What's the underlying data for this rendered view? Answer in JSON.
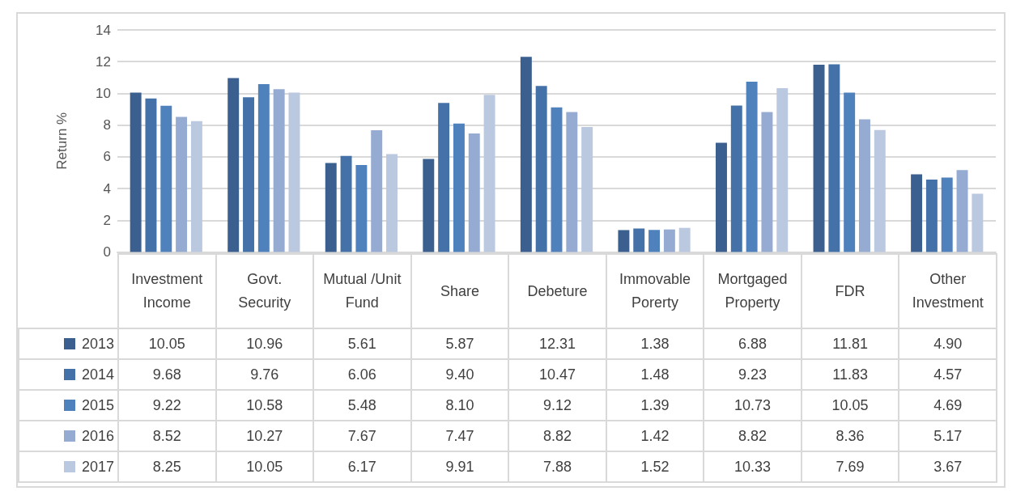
{
  "chart_data": {
    "type": "bar",
    "ylabel": "Return %",
    "categories": [
      "Investment Income",
      "Govt. Security",
      "Mutual /Unit Fund",
      "Share",
      "Debeture",
      "Immovable Porerty",
      "Mortgaged Property",
      "FDR",
      "Other Investment"
    ],
    "series": [
      {
        "name": "2013",
        "color": "#3b5f8f",
        "values": [
          10.05,
          10.96,
          5.61,
          5.87,
          12.31,
          1.38,
          6.88,
          11.81,
          4.9
        ],
        "value_labels": [
          "10.05",
          "10.96",
          "5.61",
          "5.87",
          "12.31",
          "1.38",
          "6.88",
          "11.81",
          "4.90"
        ]
      },
      {
        "name": "2014",
        "color": "#4472a8",
        "values": [
          9.68,
          9.76,
          6.06,
          9.4,
          10.47,
          1.48,
          9.23,
          11.83,
          4.57
        ],
        "value_labels": [
          "9.68",
          "9.76",
          "6.06",
          "9.40",
          "10.47",
          "1.48",
          "9.23",
          "11.83",
          "4.57"
        ]
      },
      {
        "name": "2015",
        "color": "#4f81bd",
        "values": [
          9.22,
          10.58,
          5.48,
          8.1,
          9.12,
          1.39,
          10.73,
          10.05,
          4.69
        ],
        "value_labels": [
          "9.22",
          "10.58",
          "5.48",
          "8.10",
          "9.12",
          "1.39",
          "10.73",
          "10.05",
          "4.69"
        ]
      },
      {
        "name": "2016",
        "color": "#95abd2",
        "values": [
          8.52,
          10.27,
          7.67,
          7.47,
          8.82,
          1.42,
          8.82,
          8.36,
          5.17
        ],
        "value_labels": [
          "8.52",
          "10.27",
          "7.67",
          "7.47",
          "8.82",
          "1.42",
          "8.82",
          "8.36",
          "5.17"
        ]
      },
      {
        "name": "2017",
        "color": "#bac8e0",
        "values": [
          8.25,
          10.05,
          6.17,
          9.91,
          7.88,
          1.52,
          10.33,
          7.69,
          3.67
        ],
        "value_labels": [
          "8.25",
          "10.05",
          "6.17",
          "9.91",
          "7.88",
          "1.52",
          "10.33",
          "7.69",
          "3.67"
        ]
      }
    ],
    "ylim": [
      0,
      14
    ],
    "yticks": [
      0,
      2,
      4,
      6,
      8,
      10,
      12,
      14
    ],
    "grid": "y",
    "legend": "bottom"
  }
}
